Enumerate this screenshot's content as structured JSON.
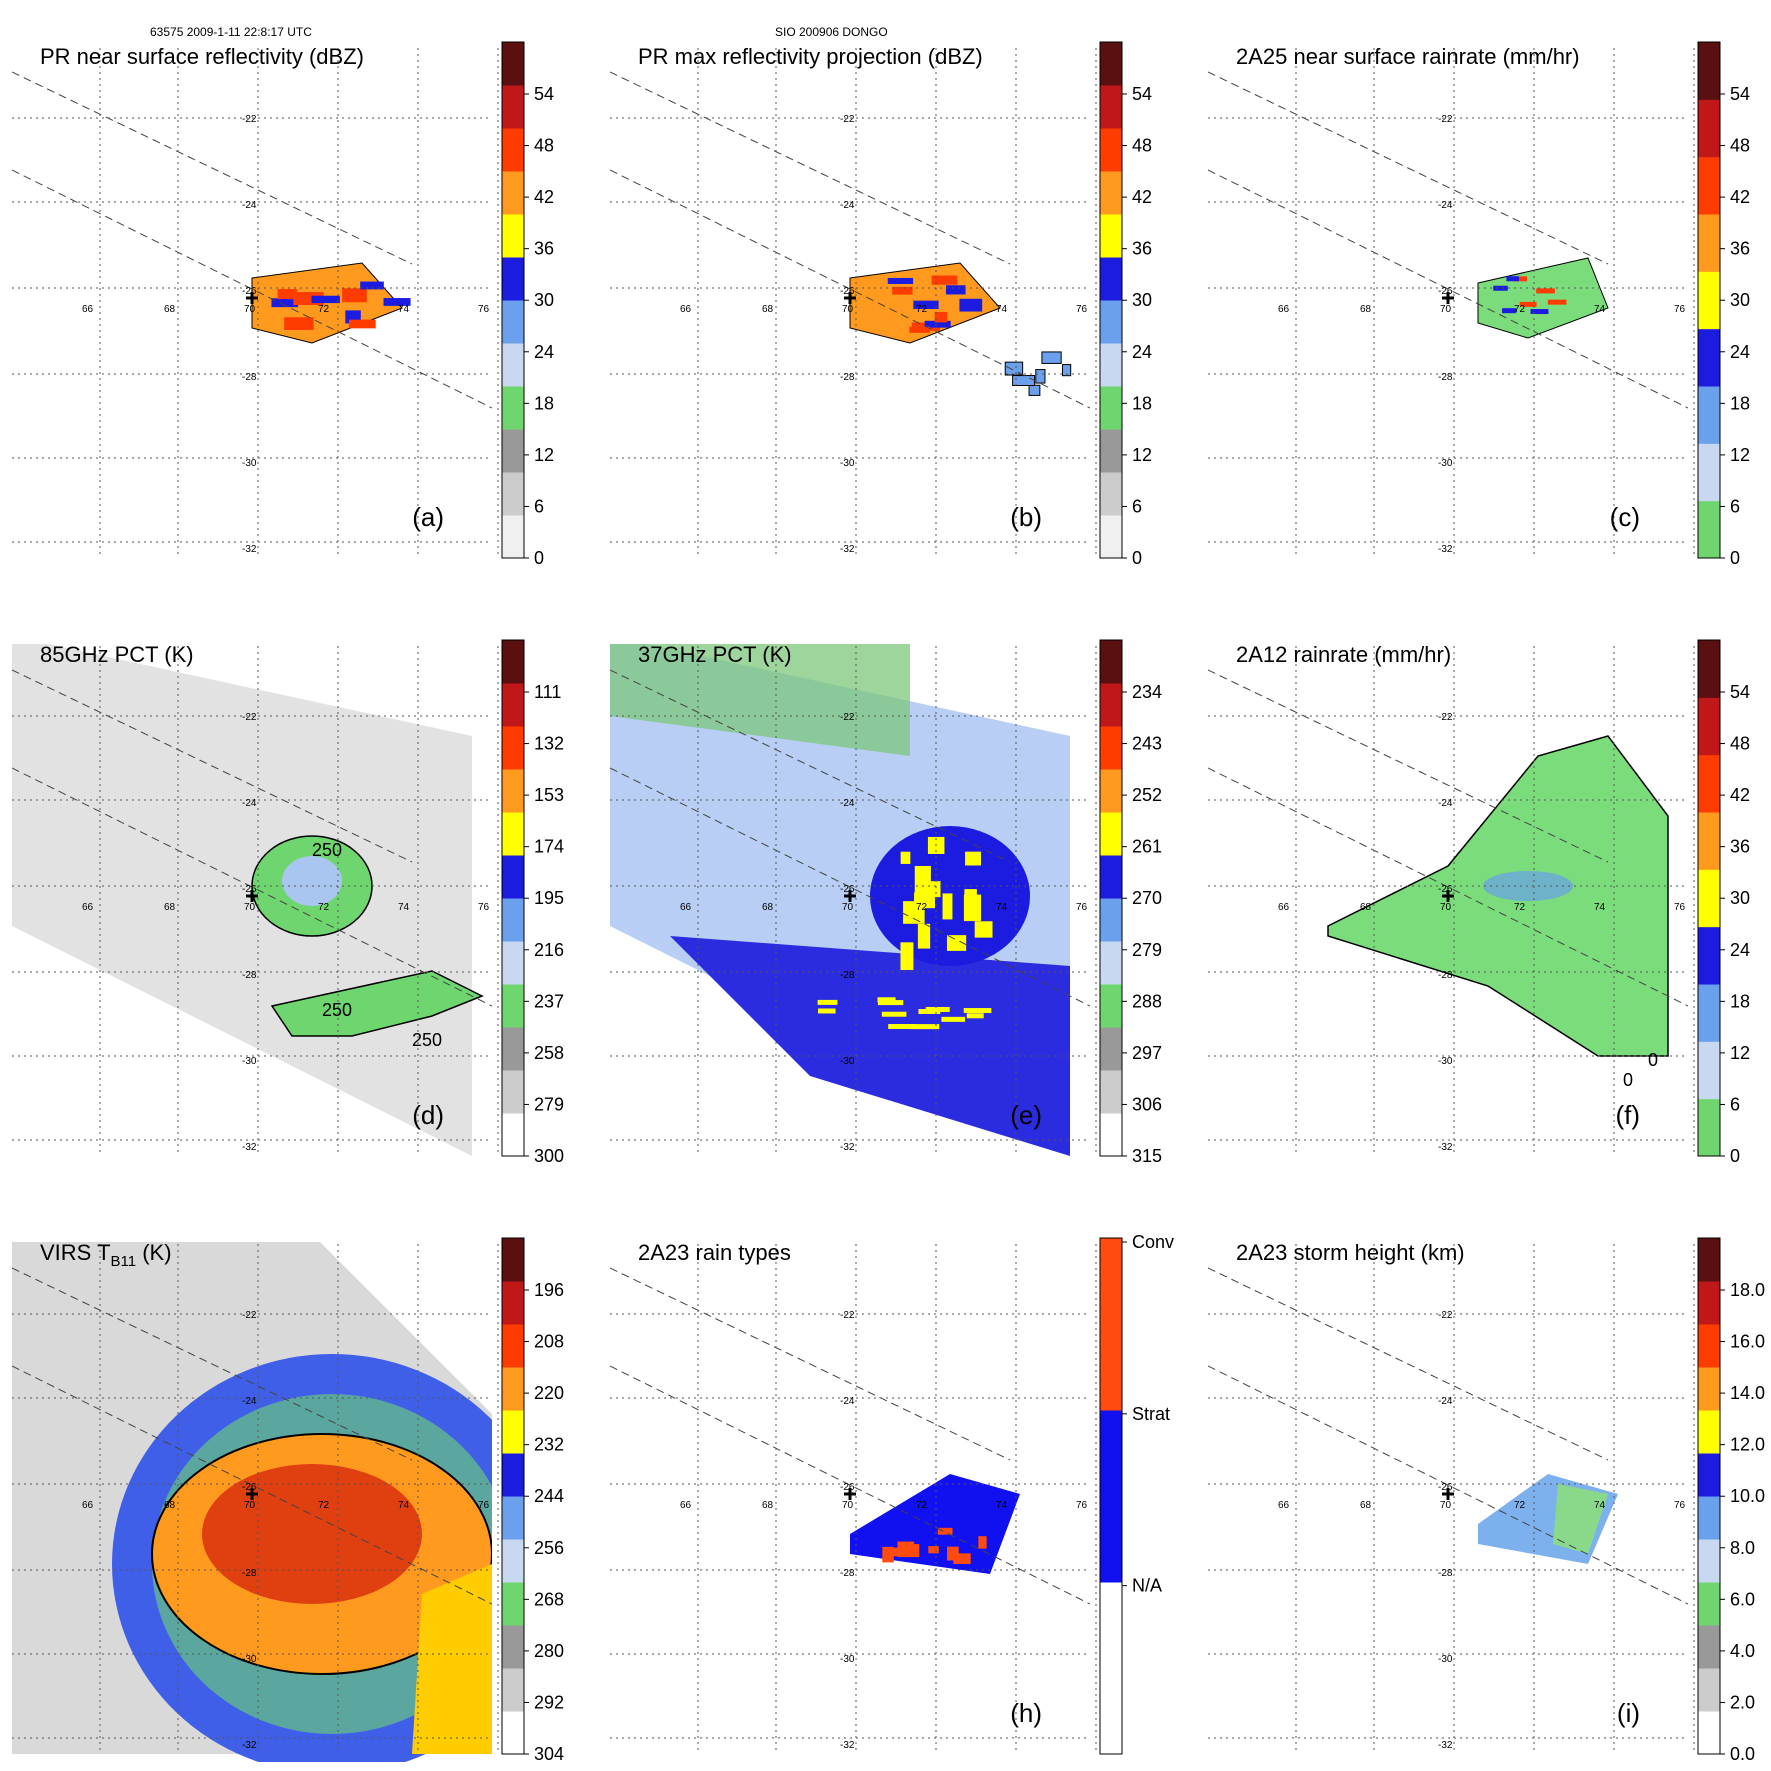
{
  "header": {
    "left": "63575 2009-1-11 22:8:17 UTC",
    "center": "SIO 200906 DONGO"
  },
  "grid": {
    "lon_labels": [
      "66",
      "68",
      "70",
      "72",
      "74",
      "76"
    ],
    "lat_labels": [
      "-22",
      "-24",
      "-26",
      "-28",
      "-30",
      "-32"
    ]
  },
  "panels": [
    {
      "id": "a",
      "title": "PR near surface reflectivity (dBZ)",
      "label": "(a)",
      "colorbar_ticks": [
        "54",
        "48",
        "42",
        "36",
        "30",
        "24",
        "18",
        "12",
        "6",
        "0"
      ],
      "colorbar": [
        "#f0f0f0",
        "#cccccc",
        "#999999",
        "#6fd66f",
        "#c8d8f0",
        "#6aa0ec",
        "#1c1ce0",
        "#ffff00",
        "#ff9a1e",
        "#ff3c00",
        "#c01818",
        "#5a1010"
      ],
      "swath": "pr",
      "fill": "reflect"
    },
    {
      "id": "b",
      "title": "PR max reflectivity projection (dBZ)",
      "label": "(b)",
      "colorbar_ticks": [
        "54",
        "48",
        "42",
        "36",
        "30",
        "24",
        "18",
        "12",
        "6",
        "0"
      ],
      "colorbar": [
        "#f0f0f0",
        "#cccccc",
        "#999999",
        "#6fd66f",
        "#c8d8f0",
        "#6aa0ec",
        "#1c1ce0",
        "#ffff00",
        "#ff9a1e",
        "#ff3c00",
        "#c01818",
        "#5a1010"
      ],
      "swath": "pr",
      "fill": "reflect"
    },
    {
      "id": "c",
      "title": "2A25 near surface rainrate (mm/hr)",
      "label": "(c)",
      "colorbar_ticks": [
        "54",
        "48",
        "42",
        "36",
        "30",
        "24",
        "18",
        "12",
        "6",
        "0"
      ],
      "colorbar": [
        "#6fd66f",
        "#c8d8f0",
        "#6aa0ec",
        "#1c1ce0",
        "#ffff00",
        "#ff9a1e",
        "#ff3c00",
        "#c01818",
        "#5a1010"
      ],
      "swath": "pr",
      "fill": "rain"
    },
    {
      "id": "d",
      "title": "85GHz PCT (K)",
      "label": "(d)",
      "colorbar_ticks": [
        "111",
        "132",
        "153",
        "174",
        "195",
        "216",
        "237",
        "258",
        "279",
        "300"
      ],
      "colorbar": [
        "#ffffff",
        "#cccccc",
        "#999999",
        "#6fd66f",
        "#c8d8f0",
        "#6aa0ec",
        "#1c1ce0",
        "#ffff00",
        "#ff9a1e",
        "#ff3c00",
        "#c01818",
        "#5a1010"
      ],
      "swath": "tmi",
      "fill": "pct85",
      "contour_labels": [
        "250",
        "250",
        "250"
      ]
    },
    {
      "id": "e",
      "title": "37GHz PCT (K)",
      "label": "(e)",
      "colorbar_ticks": [
        "234",
        "243",
        "252",
        "261",
        "270",
        "279",
        "288",
        "297",
        "306",
        "315"
      ],
      "colorbar": [
        "#ffffff",
        "#cccccc",
        "#999999",
        "#6fd66f",
        "#c8d8f0",
        "#6aa0ec",
        "#1c1ce0",
        "#ffff00",
        "#ff9a1e",
        "#ff3c00",
        "#c01818",
        "#5a1010"
      ],
      "swath": "tmi",
      "fill": "pct37"
    },
    {
      "id": "f",
      "title": "2A12 rainrate (mm/hr)",
      "label": "(f)",
      "colorbar_ticks": [
        "54",
        "48",
        "42",
        "36",
        "30",
        "24",
        "18",
        "12",
        "6",
        "0"
      ],
      "colorbar": [
        "#6fd66f",
        "#c8d8f0",
        "#6aa0ec",
        "#1c1ce0",
        "#ffff00",
        "#ff9a1e",
        "#ff3c00",
        "#c01818",
        "#5a1010"
      ],
      "swath": "tmi",
      "fill": "rain12",
      "contour_labels": [
        "0",
        "0"
      ]
    },
    {
      "id": "g",
      "title": "VIRS T",
      "title_sub": "B11",
      "title_suffix": " (K)",
      "label": "",
      "colorbar_ticks": [
        "196",
        "208",
        "220",
        "232",
        "244",
        "256",
        "268",
        "280",
        "292",
        "304"
      ],
      "colorbar": [
        "#ffffff",
        "#cccccc",
        "#999999",
        "#6fd66f",
        "#c8d8f0",
        "#6aa0ec",
        "#1c1ce0",
        "#ffff00",
        "#ff9a1e",
        "#ff3c00",
        "#c01818",
        "#5a1010"
      ],
      "swath": "virs",
      "fill": "virs"
    },
    {
      "id": "h",
      "title": "2A23 rain types",
      "label": "(h)",
      "colorbar_ticks": [
        "Conv",
        "Strat",
        "N/A"
      ],
      "colorbar": [
        "#ffffff",
        "#1010f0",
        "#ff4a10"
      ],
      "swath": "pr",
      "fill": "types"
    },
    {
      "id": "i",
      "title": "2A23 storm height (km)",
      "label": "(i)",
      "colorbar_ticks": [
        "18.0",
        "16.0",
        "14.0",
        "12.0",
        "10.0",
        "8.0",
        "6.0",
        "4.0",
        "2.0",
        "0.0"
      ],
      "colorbar": [
        "#ffffff",
        "#cccccc",
        "#999999",
        "#6fd66f",
        "#c8d8f0",
        "#6aa0ec",
        "#1c1ce0",
        "#ffff00",
        "#ff9a1e",
        "#ff3c00",
        "#c01818",
        "#5a1010"
      ],
      "swath": "pr",
      "fill": "height"
    }
  ]
}
